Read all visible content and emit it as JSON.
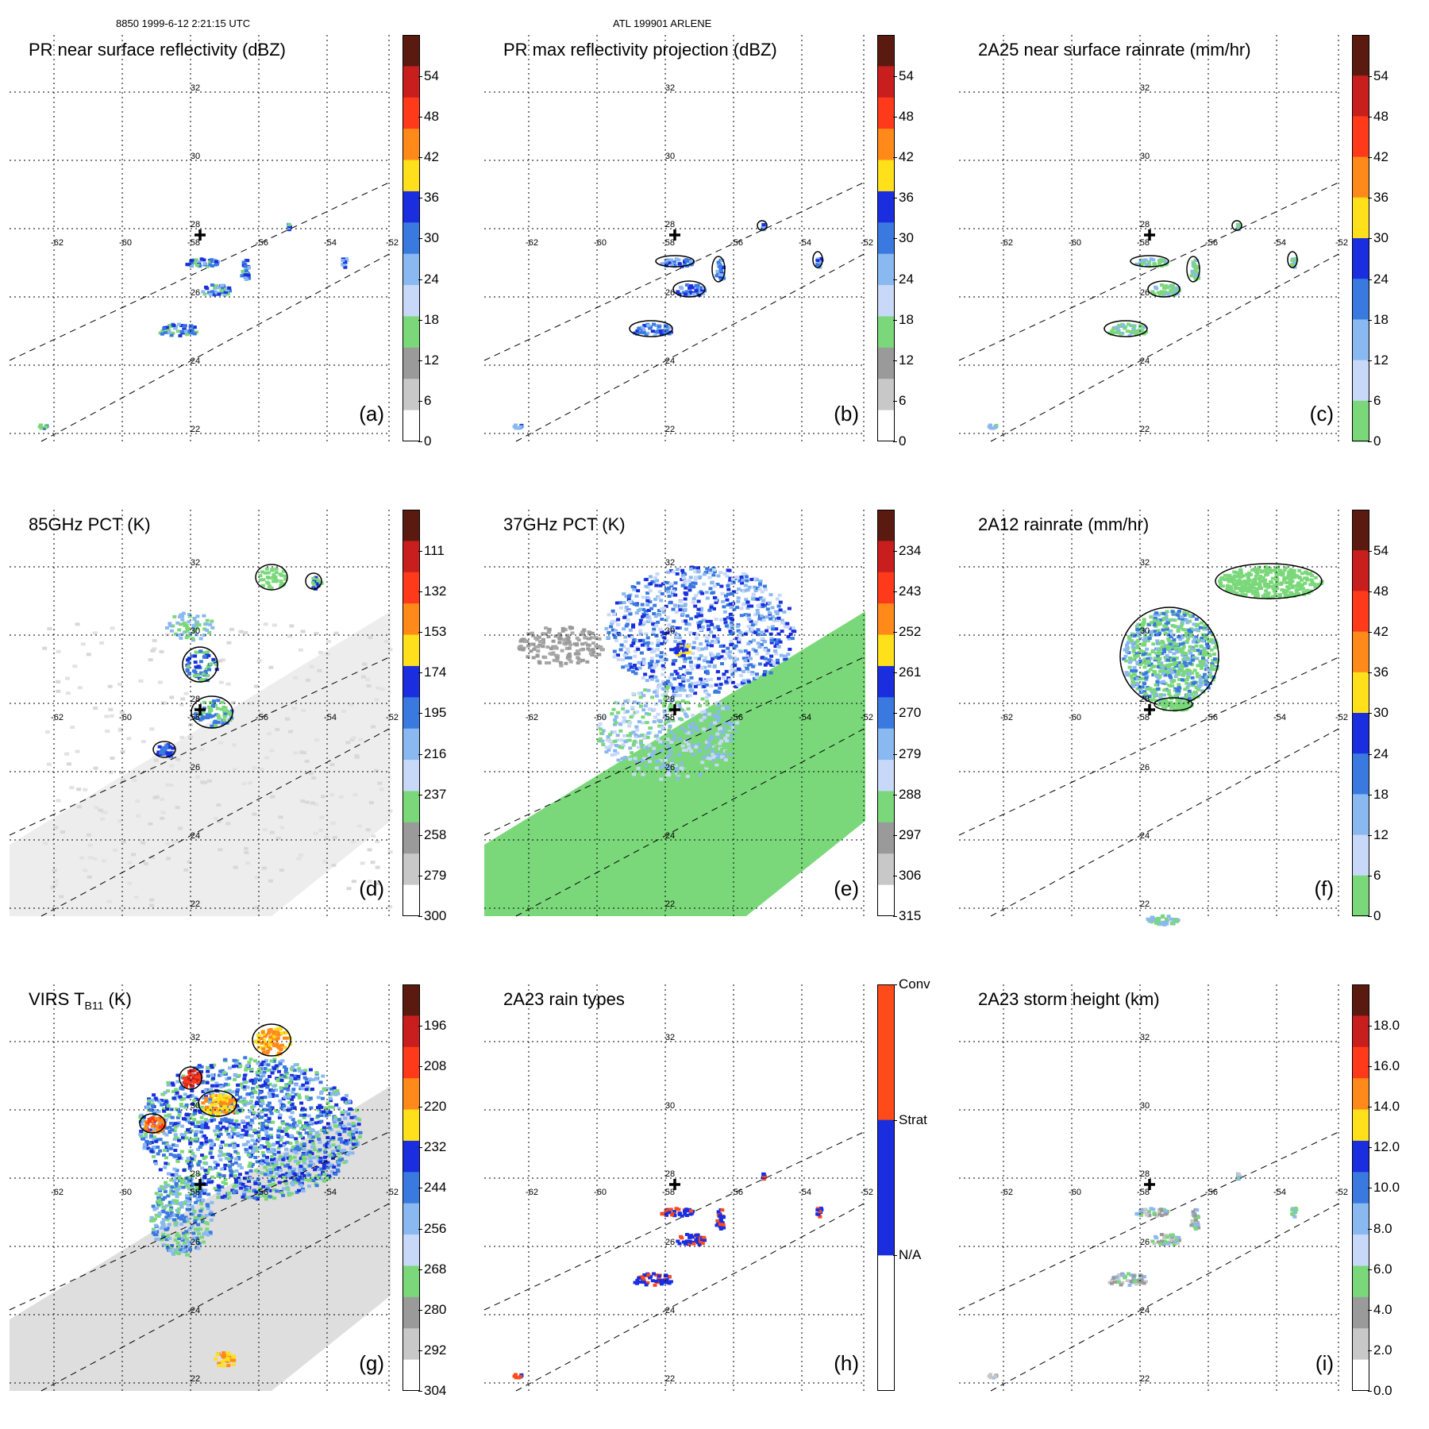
{
  "header": {
    "left": "8850 1999-6-12 2:21:15 UTC",
    "center": "ATL 199901 ARLENE"
  },
  "lon_labels": [
    "-62",
    "-60",
    "-58",
    "-56",
    "-54",
    "-52"
  ],
  "lat_labels": [
    "32",
    "30",
    "28",
    "26",
    "24",
    "22"
  ],
  "center_marker": "storm-center-cross",
  "panels": [
    {
      "id": "a",
      "title": "PR near surface reflectivity (dBZ)",
      "label": "(a)",
      "ticks": [
        "54",
        "48",
        "42",
        "36",
        "30",
        "24",
        "18",
        "12",
        "6",
        "0"
      ],
      "colors": [
        "#5a1a10",
        "#c81e1e",
        "#ff3a1a",
        "#ff8a1a",
        "#ffe01a",
        "#1a2ee0",
        "#3a7ae0",
        "#8ab8f0",
        "#c8d8f8",
        "#7ad87a",
        "#9a9a9a",
        "#c8c8c8",
        "#ffffff"
      ],
      "field": "pr_reflectivity"
    },
    {
      "id": "b",
      "title": "PR max reflectivity projection (dBZ)",
      "label": "(b)",
      "ticks": [
        "54",
        "48",
        "42",
        "36",
        "30",
        "24",
        "18",
        "12",
        "6",
        "0"
      ],
      "colors": [
        "#5a1a10",
        "#c81e1e",
        "#ff3a1a",
        "#ff8a1a",
        "#ffe01a",
        "#1a2ee0",
        "#3a7ae0",
        "#8ab8f0",
        "#c8d8f8",
        "#7ad87a",
        "#9a9a9a",
        "#c8c8c8",
        "#ffffff"
      ],
      "field": "pr_max"
    },
    {
      "id": "c",
      "title": "2A25 near surface rainrate (mm/hr)",
      "label": "(c)",
      "ticks": [
        "54",
        "48",
        "42",
        "36",
        "30",
        "24",
        "18",
        "12",
        "6",
        "0"
      ],
      "colors": [
        "#5a1a10",
        "#c81e1e",
        "#ff3a1a",
        "#ff8a1a",
        "#ffe01a",
        "#1a2ee0",
        "#3a7ae0",
        "#8ab8f0",
        "#c8d8f8",
        "#7ad87a"
      ],
      "field": "rainrate_2a25"
    },
    {
      "id": "d",
      "title": "85GHz PCT (K)",
      "label": "(d)",
      "ticks": [
        "111",
        "132",
        "153",
        "174",
        "195",
        "216",
        "237",
        "258",
        "279",
        "300"
      ],
      "colors": [
        "#5a1a10",
        "#c81e1e",
        "#ff3a1a",
        "#ff8a1a",
        "#ffe01a",
        "#1a2ee0",
        "#3a7ae0",
        "#8ab8f0",
        "#c8d8f8",
        "#7ad87a",
        "#9a9a9a",
        "#c8c8c8",
        "#ffffff"
      ],
      "field": "pct85"
    },
    {
      "id": "e",
      "title": "37GHz PCT (K)",
      "label": "(e)",
      "ticks": [
        "234",
        "243",
        "252",
        "261",
        "270",
        "279",
        "288",
        "297",
        "306",
        "315"
      ],
      "colors": [
        "#5a1a10",
        "#c81e1e",
        "#ff3a1a",
        "#ff8a1a",
        "#ffe01a",
        "#1a2ee0",
        "#3a7ae0",
        "#8ab8f0",
        "#c8d8f8",
        "#7ad87a",
        "#9a9a9a",
        "#c8c8c8",
        "#ffffff"
      ],
      "field": "pct37"
    },
    {
      "id": "f",
      "title": "2A12 rainrate (mm/hr)",
      "label": "(f)",
      "ticks": [
        "54",
        "48",
        "42",
        "36",
        "30",
        "24",
        "18",
        "12",
        "6",
        "0"
      ],
      "colors": [
        "#5a1a10",
        "#c81e1e",
        "#ff3a1a",
        "#ff8a1a",
        "#ffe01a",
        "#1a2ee0",
        "#3a7ae0",
        "#8ab8f0",
        "#c8d8f8",
        "#7ad87a"
      ],
      "field": "rainrate_2a12"
    },
    {
      "id": "g",
      "title": "VIRS T",
      "title_sub": "B11",
      "title_suffix": " (K)",
      "label": "(g)",
      "ticks": [
        "196",
        "208",
        "220",
        "232",
        "244",
        "256",
        "268",
        "280",
        "292",
        "304"
      ],
      "colors": [
        "#5a1a10",
        "#c81e1e",
        "#ff3a1a",
        "#ff8a1a",
        "#ffe01a",
        "#1a2ee0",
        "#3a7ae0",
        "#8ab8f0",
        "#c8d8f8",
        "#7ad87a",
        "#9a9a9a",
        "#c8c8c8",
        "#ffffff"
      ],
      "field": "virs"
    },
    {
      "id": "h",
      "title": "2A23 rain types",
      "label": "(h)",
      "ticks": [
        "Conv",
        "Strat",
        "N/A"
      ],
      "colors": [
        "#ff4a1a",
        "#1a2ee0",
        "#ffffff"
      ],
      "field": "raintype"
    },
    {
      "id": "i",
      "title": "2A23 storm height (km)",
      "label": "(i)",
      "ticks": [
        "18.0",
        "16.0",
        "14.0",
        "12.0",
        "10.0",
        "8.0",
        "6.0",
        "4.0",
        "2.0",
        "0.0"
      ],
      "colors": [
        "#5a1a10",
        "#c81e1e",
        "#ff3a1a",
        "#ff8a1a",
        "#ffe01a",
        "#1a2ee0",
        "#3a7ae0",
        "#8ab8f0",
        "#c8d8f8",
        "#7ad87a",
        "#9a9a9a",
        "#c8c8c8",
        "#ffffff"
      ],
      "field": "stormheight"
    }
  ]
}
